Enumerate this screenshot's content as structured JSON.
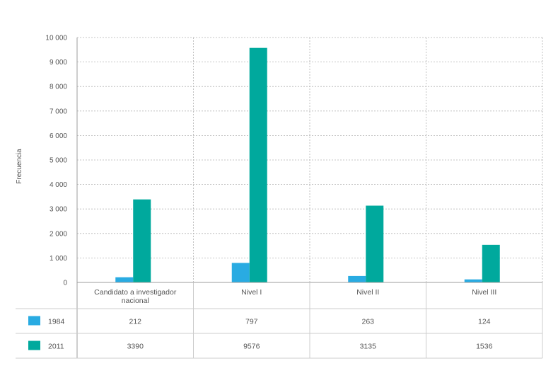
{
  "chart_data": {
    "type": "bar",
    "ylabel": "Frecuencia",
    "ylim": [
      0,
      10000
    ],
    "yticks": [
      "0",
      "1 000",
      "2 000",
      "3 000",
      "4 000",
      "5 000",
      "6 000",
      "7 000",
      "8 000",
      "9 000",
      "10 000"
    ],
    "categories": [
      "Candidato a investigador nacional",
      "Nivel I",
      "Nivel II",
      "Nivel III"
    ],
    "category_lines": [
      [
        "Candidato a investigador",
        "nacional"
      ],
      [
        "Nivel I"
      ],
      [
        "Nivel II"
      ],
      [
        "Nivel III"
      ]
    ],
    "series": [
      {
        "name": "1984",
        "color": "#29abe2",
        "values": [
          212,
          797,
          263,
          124
        ]
      },
      {
        "name": "2011",
        "color": "#00a99d",
        "values": [
          3390,
          9576,
          3135,
          1536
        ]
      }
    ],
    "grid": true,
    "legend": "data-table-below"
  }
}
